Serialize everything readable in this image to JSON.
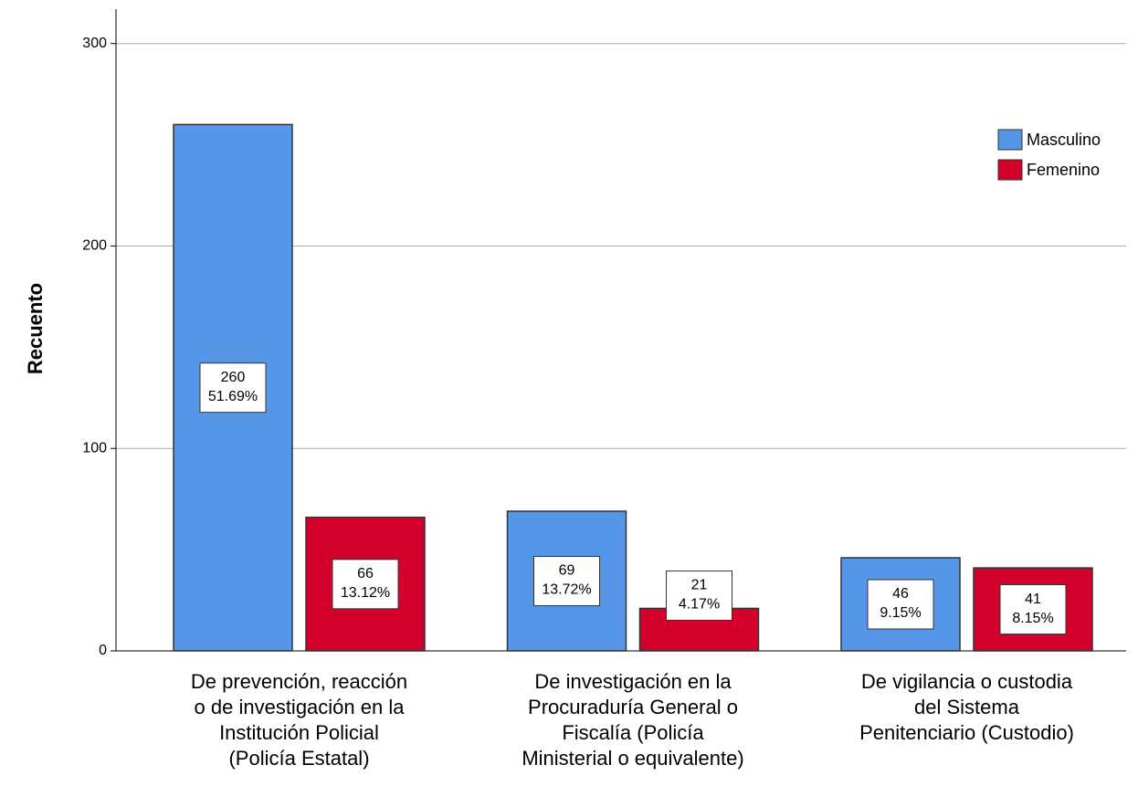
{
  "chart_data": {
    "type": "bar",
    "y_label": "Recuento",
    "categories": [
      "De prevención, reacción\no de investigación en la\nInstitución Policial\n(Policía Estatal)",
      "De investigación en la\nProcuraduría General o\nFiscalía (Policía\nMinisterial o equivalente)",
      "De vigilancia o custodia\ndel Sistema\nPenitenciario (Custodio)"
    ],
    "series": [
      {
        "name": "Masculino",
        "color": "#5596e6",
        "values": [
          260,
          69,
          46
        ],
        "percents": [
          51.69,
          13.72,
          9.15
        ],
        "percent_labels": [
          "51.69%",
          "13.72%",
          "9.15%"
        ]
      },
      {
        "name": "Femenino",
        "color": "#d3002c",
        "values": [
          66,
          21,
          41
        ],
        "percents": [
          13.12,
          4.17,
          8.15
        ],
        "percent_labels": [
          "13.12%",
          "4.17%",
          "8.15%"
        ]
      }
    ],
    "ylim": [
      0,
      317
    ],
    "yticks": [
      0,
      100,
      200,
      300
    ],
    "grid": true,
    "legend": "top-right"
  }
}
